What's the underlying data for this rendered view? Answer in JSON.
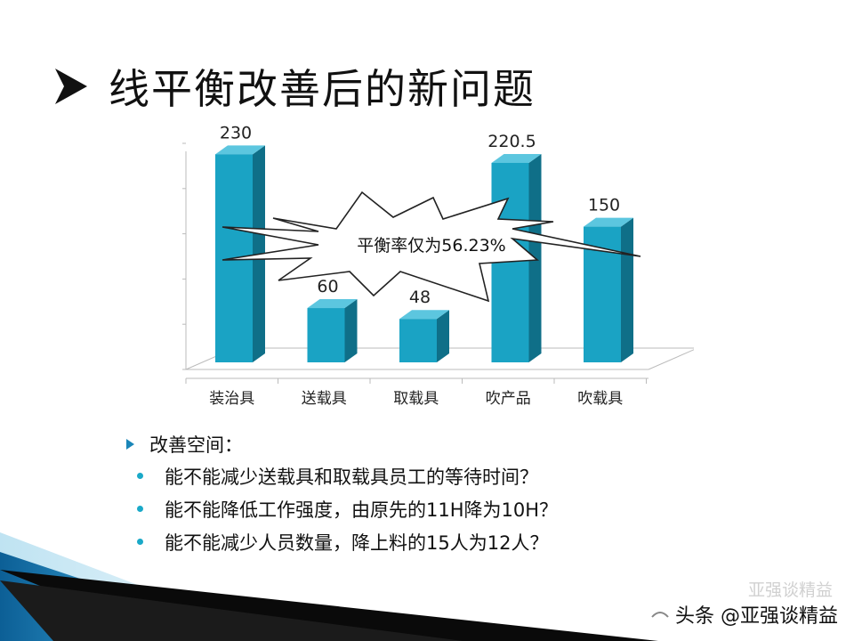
{
  "slide": {
    "title": "线平衡改善后的新问题",
    "callout": "平衡率仅为56.23%",
    "bullets": {
      "heading": "改善空间：",
      "items": [
        "能不能减少送载具和取载具员工的等待时间？",
        "能不能降低工作强度，由原先的11H降为10H？",
        "能不能减少人员数量，降上料的15人为12人？"
      ]
    },
    "watermark": {
      "text": "头条 @亚强谈精益",
      "ghost": "亚强谈精益"
    }
  },
  "colors": {
    "bar": "#1aa3c4",
    "bar_dark": "#0f6f88",
    "bullet_dot": "#1aa9c8",
    "decor_blue": "#1a86b8"
  },
  "icons": [
    "arrow-bullet-icon",
    "triangle-bullet-icon",
    "dot-bullet-icon",
    "watermark-logo-icon"
  ],
  "chart_data": {
    "type": "bar",
    "categories": [
      "装治具",
      "送载具",
      "取载具",
      "吹产品",
      "吹载具"
    ],
    "values": [
      230,
      60,
      48,
      220.5,
      150
    ],
    "data_labels": [
      "230",
      "60",
      "48",
      "220.5",
      "150"
    ],
    "ylim": [
      0,
      250
    ],
    "style": "3d",
    "gridlines": false
  }
}
